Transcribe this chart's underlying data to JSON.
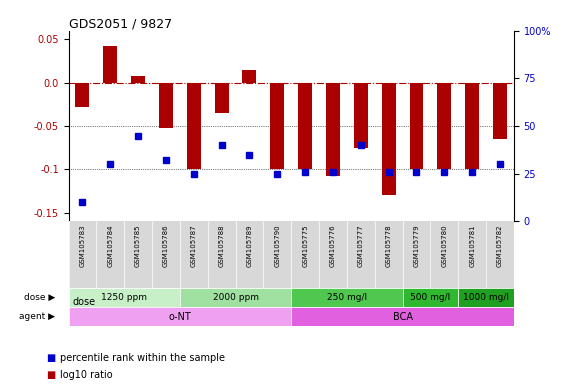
{
  "title": "GDS2051 / 9827",
  "samples": [
    "GSM105783",
    "GSM105784",
    "GSM105785",
    "GSM105786",
    "GSM105787",
    "GSM105788",
    "GSM105789",
    "GSM105790",
    "GSM105775",
    "GSM105776",
    "GSM105777",
    "GSM105778",
    "GSM105779",
    "GSM105780",
    "GSM105781",
    "GSM105782"
  ],
  "log10_ratio": [
    -0.028,
    0.042,
    0.008,
    -0.052,
    -0.1,
    -0.035,
    0.015,
    -0.1,
    -0.1,
    -0.108,
    -0.075,
    -0.13,
    -0.1,
    -0.1,
    -0.1,
    -0.065
  ],
  "percentile": [
    10,
    30,
    45,
    32,
    25,
    40,
    35,
    25,
    26,
    26,
    40,
    26,
    26,
    26,
    26,
    30
  ],
  "dose_groups": [
    {
      "label": "1250 ppm",
      "start": 0,
      "end": 4,
      "color": "#c8f0c8"
    },
    {
      "label": "2000 ppm",
      "start": 4,
      "end": 8,
      "color": "#a0e0a0"
    },
    {
      "label": "250 mg/l",
      "start": 8,
      "end": 12,
      "color": "#50c850"
    },
    {
      "label": "500 mg/l",
      "start": 12,
      "end": 14,
      "color": "#30b830"
    },
    {
      "label": "1000 mg/l",
      "start": 14,
      "end": 16,
      "color": "#20a020"
    }
  ],
  "agent_groups": [
    {
      "label": "o-NT",
      "start": 0,
      "end": 8,
      "color": "#f0a0f0"
    },
    {
      "label": "BCA",
      "start": 8,
      "end": 16,
      "color": "#e060e0"
    }
  ],
  "bar_color": "#aa0000",
  "dot_color": "#0000cc",
  "ylim_left": [
    -0.16,
    0.06
  ],
  "ylim_right": [
    0,
    100
  ],
  "yticks_left": [
    -0.15,
    -0.1,
    -0.05,
    0.0,
    0.05
  ],
  "yticks_right": [
    0,
    25,
    50,
    75,
    100
  ],
  "legend_items": [
    {
      "label": "log10 ratio",
      "color": "#aa0000",
      "marker": "s"
    },
    {
      "label": "percentile rank within the sample",
      "color": "#0000cc",
      "marker": "s"
    }
  ]
}
